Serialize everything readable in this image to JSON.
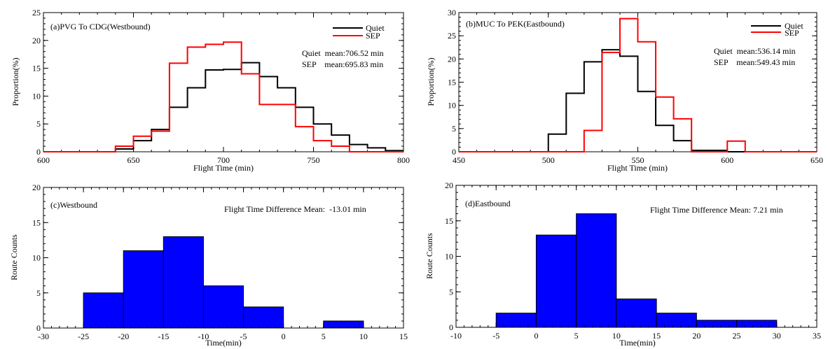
{
  "chart_data": [
    {
      "id": "a",
      "type": "histogram-step",
      "title": "(a)PVG To CDG(Westbound)",
      "xlabel": "Flight Time (min)",
      "ylabel": "Proportion(%)",
      "xlim": [
        600,
        800
      ],
      "ylim": [
        0,
        25
      ],
      "xticks": [
        "600",
        "650",
        "700",
        "750",
        "800"
      ],
      "xtick_values": [
        600,
        650,
        700,
        750,
        800
      ],
      "yticks": [
        "0",
        "5",
        "10",
        "15",
        "20",
        "25"
      ],
      "ytick_values": [
        0,
        5,
        10,
        15,
        20,
        25
      ],
      "bin_edges": [
        600,
        610,
        620,
        630,
        640,
        650,
        660,
        670,
        680,
        690,
        700,
        710,
        720,
        730,
        740,
        750,
        760,
        770,
        780,
        790,
        800
      ],
      "series": [
        {
          "name": "Quiet",
          "color": "#000000",
          "values": [
            0,
            0,
            0,
            0,
            0.5,
            2.0,
            4.0,
            8.0,
            11.5,
            14.7,
            14.8,
            16.0,
            13.5,
            11.5,
            8.0,
            5.0,
            3.0,
            1.3,
            0.7,
            0.2
          ]
        },
        {
          "name": "SEP",
          "color": "#ff0000",
          "values": [
            0,
            0,
            0,
            0,
            1.0,
            2.8,
            3.7,
            15.9,
            18.8,
            19.3,
            19.7,
            14.0,
            8.5,
            8.5,
            4.5,
            2.0,
            1.0,
            0,
            0,
            0
          ]
        }
      ],
      "stats": [
        "Quiet  mean:706.52 min",
        "SEP    mean:695.83 min"
      ]
    },
    {
      "id": "b",
      "type": "histogram-step",
      "title": "(b)MUC To PEK(Eastbound)",
      "xlabel": "Flight Time (min)",
      "ylabel": "Proportion(%)",
      "xlim": [
        450,
        650
      ],
      "ylim": [
        0,
        30
      ],
      "xticks": [
        "450",
        "500",
        "550",
        "600",
        "650"
      ],
      "xtick_values": [
        450,
        500,
        550,
        600,
        650
      ],
      "yticks": [
        "0",
        "5",
        "10",
        "15",
        "20",
        "25",
        "30"
      ],
      "ytick_values": [
        0,
        5,
        10,
        15,
        20,
        25,
        30
      ],
      "bin_edges": [
        450,
        460,
        470,
        480,
        490,
        500,
        510,
        520,
        530,
        540,
        550,
        560,
        570,
        580,
        590,
        600,
        610,
        620,
        630,
        640,
        650
      ],
      "series": [
        {
          "name": "Quiet",
          "color": "#000000",
          "values": [
            0,
            0,
            0,
            0,
            0,
            3.8,
            12.6,
            19.4,
            22.0,
            20.6,
            13.0,
            5.7,
            2.4,
            0.3,
            0.3,
            0,
            0,
            0,
            0,
            0
          ]
        },
        {
          "name": "SEP",
          "color": "#ff0000",
          "values": [
            0,
            0,
            0,
            0,
            0,
            0,
            0,
            4.6,
            21.4,
            28.7,
            23.7,
            11.8,
            7.1,
            0,
            0,
            2.3,
            0,
            0,
            0,
            0
          ]
        }
      ],
      "stats": [
        "Quiet  mean:536.14 min",
        "SEP    mean:549.43 min"
      ]
    },
    {
      "id": "c",
      "type": "bar",
      "title": "(c)Westbound",
      "xlabel": "Time(min)",
      "ylabel": "Route Counts",
      "xlim": [
        -30,
        15
      ],
      "ylim": [
        0,
        20
      ],
      "xticks": [
        "-30",
        "-25",
        "-20",
        "-15",
        "-10",
        "-5",
        "0",
        "5",
        "10",
        "15"
      ],
      "xtick_values": [
        -30,
        -25,
        -20,
        -15,
        -10,
        -5,
        0,
        5,
        10,
        15
      ],
      "yticks": [
        "0",
        "5",
        "10",
        "15",
        "20"
      ],
      "ytick_values": [
        0,
        5,
        10,
        15,
        20
      ],
      "bin_edges": [
        -25,
        -20,
        -15,
        -10,
        -5,
        0,
        5,
        10
      ],
      "values": [
        5,
        11,
        13,
        6,
        3,
        0,
        1
      ],
      "bar_color": "#0000ff",
      "annotation": "Flight Time Difference Mean:  -13.01 min"
    },
    {
      "id": "d",
      "type": "bar",
      "title": "(d)Eastbound",
      "xlabel": "Time(min)",
      "ylabel": "Route Counts",
      "xlim": [
        -10,
        35
      ],
      "ylim": [
        0,
        20
      ],
      "xticks": [
        "-10",
        "-5",
        "0",
        "5",
        "10",
        "15",
        "20",
        "25",
        "30",
        "35"
      ],
      "xtick_values": [
        -10,
        -5,
        0,
        5,
        10,
        15,
        20,
        25,
        30,
        35
      ],
      "yticks": [
        "0",
        "5",
        "10",
        "15",
        "20"
      ],
      "ytick_values": [
        0,
        5,
        10,
        15,
        20
      ],
      "bin_edges": [
        -5,
        0,
        5,
        10,
        15,
        20,
        25,
        30
      ],
      "values": [
        2,
        13,
        16,
        4,
        2,
        1,
        1
      ],
      "bar_color": "#0000ff",
      "annotation": "Flight Time Difference Mean: 7.21 min"
    }
  ]
}
